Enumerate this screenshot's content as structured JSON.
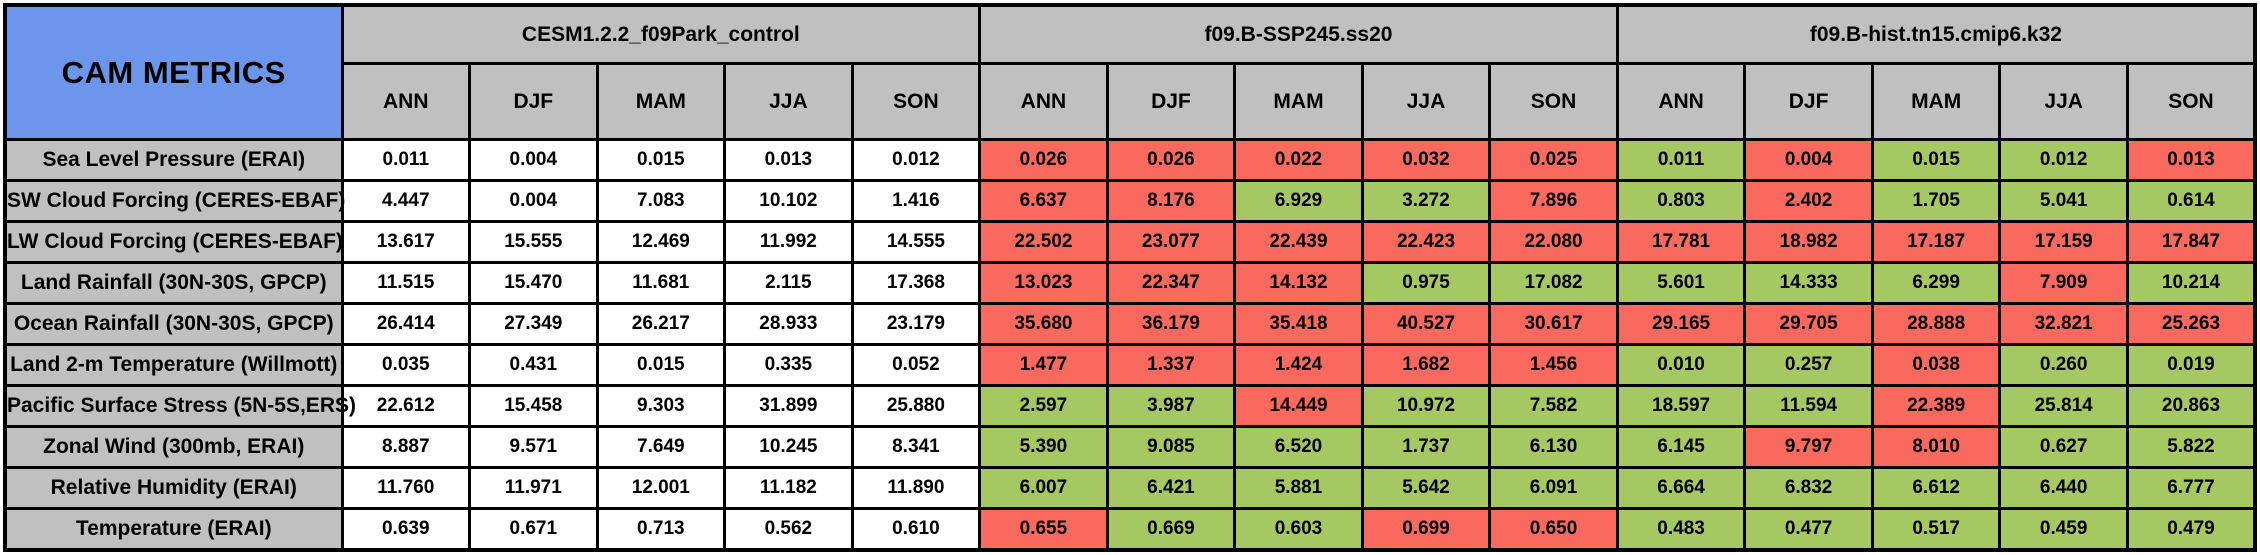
{
  "colors": {
    "blue": "#6C96EC",
    "gray": "#C0C0C0",
    "red": "#FA695E",
    "green": "#A5C862",
    "white": "#FFFFFF"
  },
  "table": {
    "title": "CAM METRICS",
    "groups": [
      "CESM1.2.2_f09Park_control",
      "f09.B-SSP245.ss20",
      "f09.B-hist.tn15.cmip6.k32"
    ],
    "seasons": [
      "ANN",
      "DJF",
      "MAM",
      "JJA",
      "SON"
    ]
  },
  "rows": [
    {
      "label": "Sea Level Pressure (ERAI)",
      "cells": [
        {
          "v": "0.011",
          "c": "white"
        },
        {
          "v": "0.004",
          "c": "white"
        },
        {
          "v": "0.015",
          "c": "white"
        },
        {
          "v": "0.013",
          "c": "white"
        },
        {
          "v": "0.012",
          "c": "white"
        },
        {
          "v": "0.026",
          "c": "red"
        },
        {
          "v": "0.026",
          "c": "red"
        },
        {
          "v": "0.022",
          "c": "red"
        },
        {
          "v": "0.032",
          "c": "red"
        },
        {
          "v": "0.025",
          "c": "red"
        },
        {
          "v": "0.011",
          "c": "green"
        },
        {
          "v": "0.004",
          "c": "red"
        },
        {
          "v": "0.015",
          "c": "green"
        },
        {
          "v": "0.012",
          "c": "green"
        },
        {
          "v": "0.013",
          "c": "red"
        }
      ]
    },
    {
      "label": "SW Cloud Forcing (CERES-EBAF)",
      "cells": [
        {
          "v": "4.447",
          "c": "white"
        },
        {
          "v": "0.004",
          "c": "white"
        },
        {
          "v": "7.083",
          "c": "white"
        },
        {
          "v": "10.102",
          "c": "white"
        },
        {
          "v": "1.416",
          "c": "white"
        },
        {
          "v": "6.637",
          "c": "red"
        },
        {
          "v": "8.176",
          "c": "red"
        },
        {
          "v": "6.929",
          "c": "green"
        },
        {
          "v": "3.272",
          "c": "green"
        },
        {
          "v": "7.896",
          "c": "red"
        },
        {
          "v": "0.803",
          "c": "green"
        },
        {
          "v": "2.402",
          "c": "red"
        },
        {
          "v": "1.705",
          "c": "green"
        },
        {
          "v": "5.041",
          "c": "green"
        },
        {
          "v": "0.614",
          "c": "green"
        }
      ]
    },
    {
      "label": "LW Cloud Forcing (CERES-EBAF)",
      "cells": [
        {
          "v": "13.617",
          "c": "white"
        },
        {
          "v": "15.555",
          "c": "white"
        },
        {
          "v": "12.469",
          "c": "white"
        },
        {
          "v": "11.992",
          "c": "white"
        },
        {
          "v": "14.555",
          "c": "white"
        },
        {
          "v": "22.502",
          "c": "red"
        },
        {
          "v": "23.077",
          "c": "red"
        },
        {
          "v": "22.439",
          "c": "red"
        },
        {
          "v": "22.423",
          "c": "red"
        },
        {
          "v": "22.080",
          "c": "red"
        },
        {
          "v": "17.781",
          "c": "red"
        },
        {
          "v": "18.982",
          "c": "red"
        },
        {
          "v": "17.187",
          "c": "red"
        },
        {
          "v": "17.159",
          "c": "red"
        },
        {
          "v": "17.847",
          "c": "red"
        }
      ]
    },
    {
      "label": "Land Rainfall (30N-30S, GPCP)",
      "cells": [
        {
          "v": "11.515",
          "c": "white"
        },
        {
          "v": "15.470",
          "c": "white"
        },
        {
          "v": "11.681",
          "c": "white"
        },
        {
          "v": "2.115",
          "c": "white"
        },
        {
          "v": "17.368",
          "c": "white"
        },
        {
          "v": "13.023",
          "c": "red"
        },
        {
          "v": "22.347",
          "c": "red"
        },
        {
          "v": "14.132",
          "c": "red"
        },
        {
          "v": "0.975",
          "c": "green"
        },
        {
          "v": "17.082",
          "c": "green"
        },
        {
          "v": "5.601",
          "c": "green"
        },
        {
          "v": "14.333",
          "c": "green"
        },
        {
          "v": "6.299",
          "c": "green"
        },
        {
          "v": "7.909",
          "c": "red"
        },
        {
          "v": "10.214",
          "c": "green"
        }
      ]
    },
    {
      "label": "Ocean Rainfall (30N-30S, GPCP)",
      "cells": [
        {
          "v": "26.414",
          "c": "white"
        },
        {
          "v": "27.349",
          "c": "white"
        },
        {
          "v": "26.217",
          "c": "white"
        },
        {
          "v": "28.933",
          "c": "white"
        },
        {
          "v": "23.179",
          "c": "white"
        },
        {
          "v": "35.680",
          "c": "red"
        },
        {
          "v": "36.179",
          "c": "red"
        },
        {
          "v": "35.418",
          "c": "red"
        },
        {
          "v": "40.527",
          "c": "red"
        },
        {
          "v": "30.617",
          "c": "red"
        },
        {
          "v": "29.165",
          "c": "red"
        },
        {
          "v": "29.705",
          "c": "red"
        },
        {
          "v": "28.888",
          "c": "red"
        },
        {
          "v": "32.821",
          "c": "red"
        },
        {
          "v": "25.263",
          "c": "red"
        }
      ]
    },
    {
      "label": "Land 2-m Temperature (Willmott)",
      "cells": [
        {
          "v": "0.035",
          "c": "white"
        },
        {
          "v": "0.431",
          "c": "white"
        },
        {
          "v": "0.015",
          "c": "white"
        },
        {
          "v": "0.335",
          "c": "white"
        },
        {
          "v": "0.052",
          "c": "white"
        },
        {
          "v": "1.477",
          "c": "red"
        },
        {
          "v": "1.337",
          "c": "red"
        },
        {
          "v": "1.424",
          "c": "red"
        },
        {
          "v": "1.682",
          "c": "red"
        },
        {
          "v": "1.456",
          "c": "red"
        },
        {
          "v": "0.010",
          "c": "green"
        },
        {
          "v": "0.257",
          "c": "green"
        },
        {
          "v": "0.038",
          "c": "red"
        },
        {
          "v": "0.260",
          "c": "green"
        },
        {
          "v": "0.019",
          "c": "green"
        }
      ]
    },
    {
      "label": "Pacific Surface Stress (5N-5S,ERS)",
      "cells": [
        {
          "v": "22.612",
          "c": "white"
        },
        {
          "v": "15.458",
          "c": "white"
        },
        {
          "v": "9.303",
          "c": "white"
        },
        {
          "v": "31.899",
          "c": "white"
        },
        {
          "v": "25.880",
          "c": "white"
        },
        {
          "v": "2.597",
          "c": "green"
        },
        {
          "v": "3.987",
          "c": "green"
        },
        {
          "v": "14.449",
          "c": "red"
        },
        {
          "v": "10.972",
          "c": "green"
        },
        {
          "v": "7.582",
          "c": "green"
        },
        {
          "v": "18.597",
          "c": "green"
        },
        {
          "v": "11.594",
          "c": "green"
        },
        {
          "v": "22.389",
          "c": "red"
        },
        {
          "v": "25.814",
          "c": "green"
        },
        {
          "v": "20.863",
          "c": "green"
        }
      ]
    },
    {
      "label": "Zonal Wind (300mb, ERAI)",
      "cells": [
        {
          "v": "8.887",
          "c": "white"
        },
        {
          "v": "9.571",
          "c": "white"
        },
        {
          "v": "7.649",
          "c": "white"
        },
        {
          "v": "10.245",
          "c": "white"
        },
        {
          "v": "8.341",
          "c": "white"
        },
        {
          "v": "5.390",
          "c": "green"
        },
        {
          "v": "9.085",
          "c": "green"
        },
        {
          "v": "6.520",
          "c": "green"
        },
        {
          "v": "1.737",
          "c": "green"
        },
        {
          "v": "6.130",
          "c": "green"
        },
        {
          "v": "6.145",
          "c": "green"
        },
        {
          "v": "9.797",
          "c": "red"
        },
        {
          "v": "8.010",
          "c": "red"
        },
        {
          "v": "0.627",
          "c": "green"
        },
        {
          "v": "5.822",
          "c": "green"
        }
      ]
    },
    {
      "label": "Relative Humidity (ERAI)",
      "cells": [
        {
          "v": "11.760",
          "c": "white"
        },
        {
          "v": "11.971",
          "c": "white"
        },
        {
          "v": "12.001",
          "c": "white"
        },
        {
          "v": "11.182",
          "c": "white"
        },
        {
          "v": "11.890",
          "c": "white"
        },
        {
          "v": "6.007",
          "c": "green"
        },
        {
          "v": "6.421",
          "c": "green"
        },
        {
          "v": "5.881",
          "c": "green"
        },
        {
          "v": "5.642",
          "c": "green"
        },
        {
          "v": "6.091",
          "c": "green"
        },
        {
          "v": "6.664",
          "c": "green"
        },
        {
          "v": "6.832",
          "c": "green"
        },
        {
          "v": "6.612",
          "c": "green"
        },
        {
          "v": "6.440",
          "c": "green"
        },
        {
          "v": "6.777",
          "c": "green"
        }
      ]
    },
    {
      "label": "Temperature (ERAI)",
      "cells": [
        {
          "v": "0.639",
          "c": "white"
        },
        {
          "v": "0.671",
          "c": "white"
        },
        {
          "v": "0.713",
          "c": "white"
        },
        {
          "v": "0.562",
          "c": "white"
        },
        {
          "v": "0.610",
          "c": "white"
        },
        {
          "v": "0.655",
          "c": "red"
        },
        {
          "v": "0.669",
          "c": "green"
        },
        {
          "v": "0.603",
          "c": "green"
        },
        {
          "v": "0.699",
          "c": "red"
        },
        {
          "v": "0.650",
          "c": "red"
        },
        {
          "v": "0.483",
          "c": "green"
        },
        {
          "v": "0.477",
          "c": "green"
        },
        {
          "v": "0.517",
          "c": "green"
        },
        {
          "v": "0.459",
          "c": "green"
        },
        {
          "v": "0.479",
          "c": "green"
        }
      ]
    }
  ]
}
